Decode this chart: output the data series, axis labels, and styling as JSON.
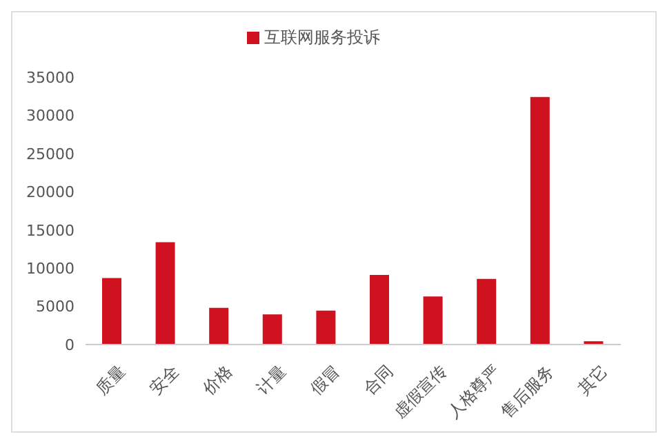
{
  "chart_data": {
    "type": "bar",
    "categories": [
      "质量",
      "安全",
      "价格",
      "计量",
      "假冒",
      "合同",
      "虚假宣传",
      "人格尊严",
      "售后服务",
      "其它"
    ],
    "series": [
      {
        "name": "互联网服务投诉",
        "color": "#d0111f",
        "values": [
          8700,
          13400,
          4800,
          3950,
          4450,
          9100,
          6300,
          8600,
          32400,
          430
        ]
      }
    ],
    "ylim": [
      0,
      35000
    ],
    "yticks": [
      0,
      5000,
      10000,
      15000,
      20000,
      25000,
      30000,
      35000
    ],
    "grid": false,
    "legend": "top"
  }
}
